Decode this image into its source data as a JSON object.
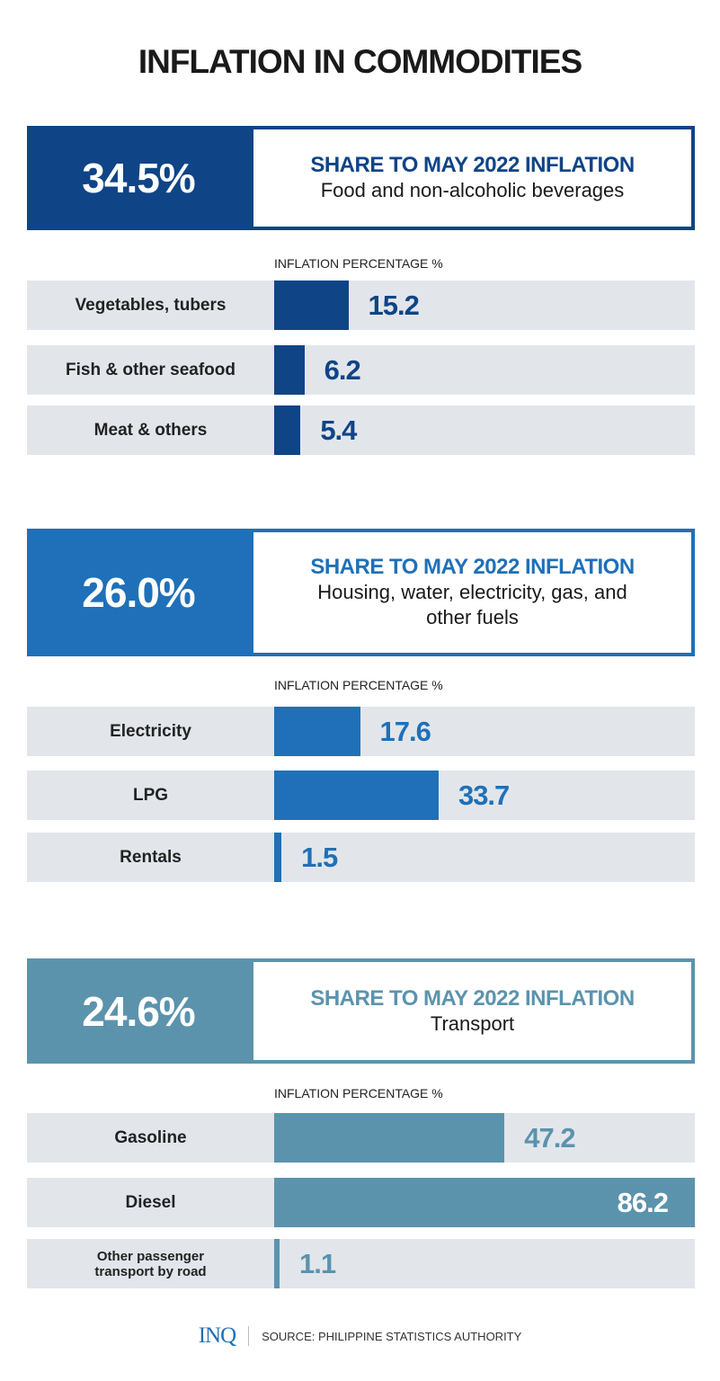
{
  "title": "INFLATION IN COMMODITIES",
  "chart_data": [
    {
      "type": "bar",
      "orientation": "horizontal",
      "share": "34.5%",
      "heading": "SHARE TO MAY 2022 INFLATION",
      "category": "Food and non-alcoholic beverages",
      "xlabel": "INFLATION PERCENTAGE %",
      "color": "#0f4486",
      "categories": [
        "Vegetables, tubers",
        "Fish & other seafood",
        "Meat & others"
      ],
      "values": [
        15.2,
        6.2,
        5.4
      ],
      "labels": [
        "15.2",
        "6.2",
        "5.4"
      ],
      "xlim": [
        0,
        86.2
      ]
    },
    {
      "type": "bar",
      "orientation": "horizontal",
      "share": "26.0%",
      "heading": "SHARE TO MAY 2022 INFLATION",
      "category": "Housing, water, electricity, gas, and other fuels",
      "xlabel": "INFLATION PERCENTAGE %",
      "color": "#1f70b8",
      "categories": [
        "Electricity",
        "LPG",
        "Rentals"
      ],
      "values": [
        17.6,
        33.7,
        1.5
      ],
      "labels": [
        "17.6",
        "33.7",
        "1.5"
      ],
      "xlim": [
        0,
        86.2
      ]
    },
    {
      "type": "bar",
      "orientation": "horizontal",
      "share": "24.6%",
      "heading": "SHARE TO MAY 2022 INFLATION",
      "category": "Transport",
      "xlabel": "INFLATION PERCENTAGE %",
      "color": "#5b93ad",
      "categories": [
        "Gasoline",
        "Diesel",
        "Other passenger transport by road"
      ],
      "values": [
        47.2,
        86.2,
        1.1
      ],
      "labels": [
        "47.2",
        "86.2",
        "1.1"
      ],
      "xlim": [
        0,
        86.2
      ]
    }
  ],
  "footer": {
    "logo": "INQ",
    "source": "SOURCE: PHILIPPINE STATISTICS AUTHORITY"
  }
}
